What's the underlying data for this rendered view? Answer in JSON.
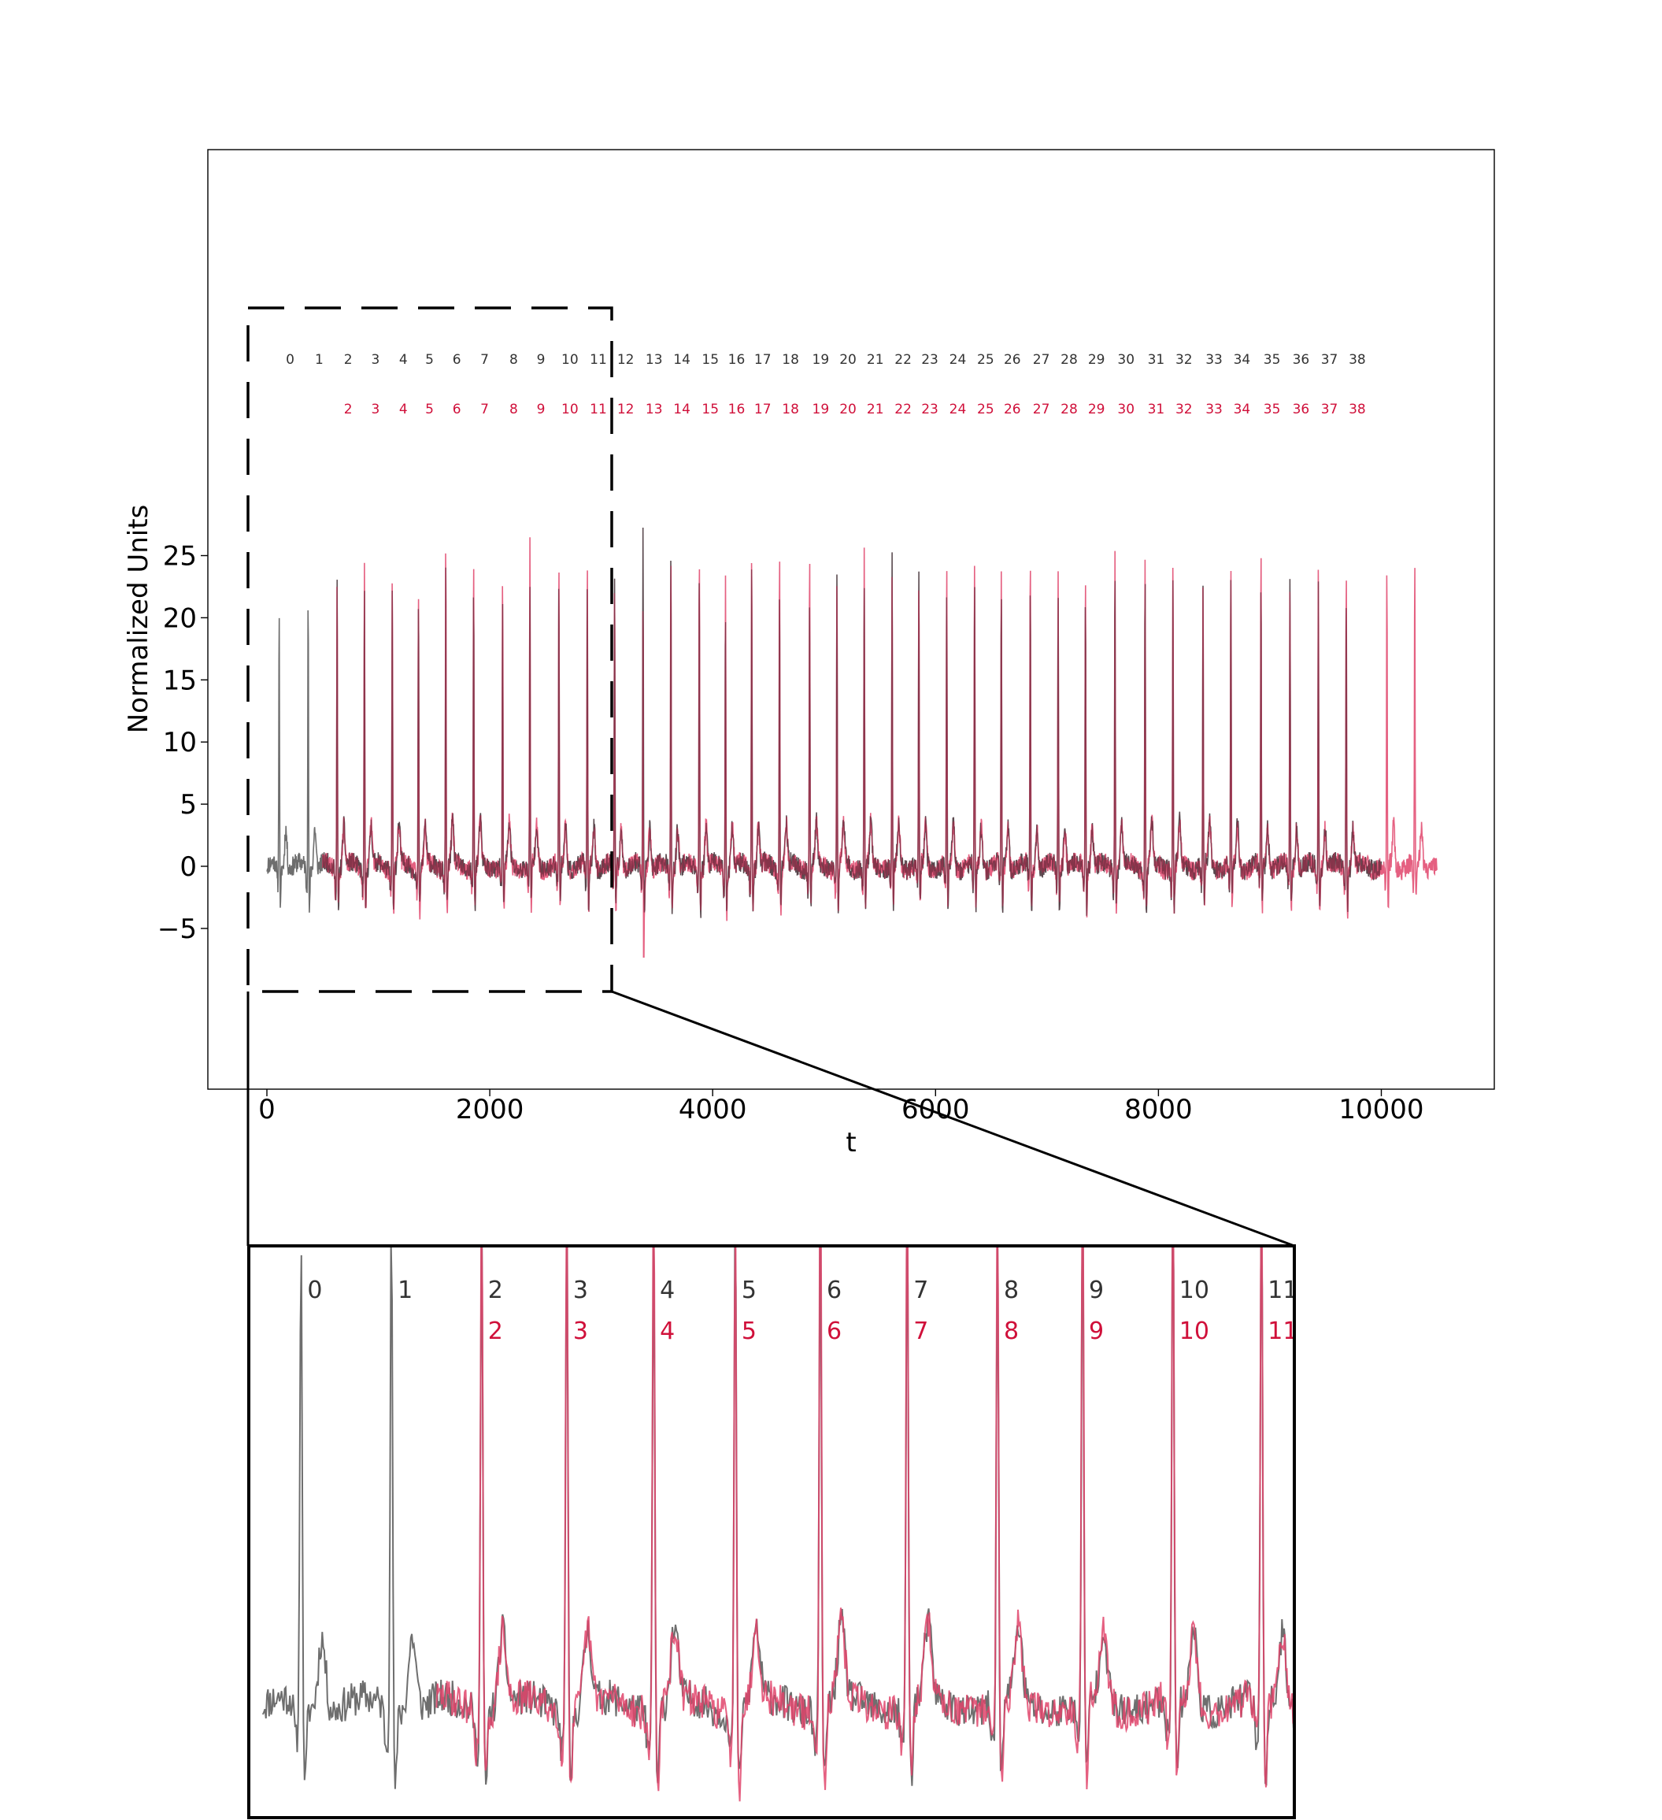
{
  "chart_data": [
    {
      "type": "line",
      "panel": "main",
      "title": "",
      "xlabel": "t",
      "ylabel": "Normalized Units",
      "xlim": [
        -540,
        11000
      ],
      "ylim": [
        -9.1,
        28.7
      ],
      "xticks": [
        0,
        2000,
        4000,
        6000,
        8000,
        10000
      ],
      "xtick_labels": [
        "0",
        "2000",
        "4000",
        "6000",
        "8000",
        "10000"
      ],
      "yticks": [
        -5,
        0,
        5,
        10,
        15,
        20,
        25
      ],
      "ytick_labels": [
        "−5",
        "0",
        "5",
        "10",
        "15",
        "20",
        "25"
      ],
      "grid": false,
      "legend": "none",
      "series": [
        {
          "color": "#6e6e6e",
          "x_range": [
            0,
            10000
          ],
          "beat_labels": [
            "0",
            "1",
            "2",
            "3",
            "4",
            "5",
            "6",
            "7",
            "8",
            "9",
            "10",
            "11",
            "12",
            "13",
            "14",
            "15",
            "16",
            "17",
            "18",
            "19",
            "20",
            "21",
            "22",
            "23",
            "24",
            "25",
            "26",
            "27",
            "28",
            "29",
            "30",
            "31",
            "32",
            "33",
            "34",
            "35",
            "36",
            "37",
            "38"
          ],
          "beat_t": [
            110,
            370,
            630,
            875,
            1125,
            1360,
            1605,
            1855,
            2115,
            2360,
            2620,
            2875,
            3120,
            3375,
            3625,
            3880,
            4115,
            4350,
            4600,
            4870,
            5115,
            5360,
            5610,
            5850,
            6100,
            6350,
            6590,
            6850,
            7100,
            7345,
            7610,
            7880,
            8130,
            8400,
            8650,
            8920,
            9180,
            9435,
            9685
          ],
          "beat_peaks": [
            21.7,
            22.8,
            23.5,
            23.3,
            22.9,
            22.8,
            23.6,
            23.1,
            21.0,
            23.2,
            24.1,
            23.3,
            23.3,
            26.8,
            26.1,
            24.2,
            22.0,
            24.1,
            23.3,
            23.1,
            24.1,
            24.1,
            24.4,
            23.2,
            23.0,
            24.1,
            23.2,
            23.2,
            23.1,
            22.1,
            25.6,
            24.9,
            23.8,
            23.1,
            24.1,
            24.0,
            23.1,
            22.8,
            23.2
          ]
        },
        {
          "color": "#e0446b",
          "x_range": [
            500,
            10500
          ],
          "beat_labels": [
            "2",
            "3",
            "4",
            "5",
            "6",
            "7",
            "8",
            "9",
            "10",
            "11",
            "12",
            "13",
            "14",
            "15",
            "16",
            "17",
            "18",
            "19",
            "20",
            "21",
            "22",
            "23",
            "24",
            "25",
            "26",
            "27",
            "28",
            "29",
            "30",
            "31",
            "32",
            "33",
            "34",
            "35",
            "36",
            "37",
            "38"
          ],
          "beat_t": [
            630,
            875,
            1125,
            1360,
            1605,
            1855,
            2115,
            2360,
            2620,
            2875,
            3120,
            3375,
            3625,
            3880,
            4115,
            4350,
            4600,
            4870,
            5115,
            5360,
            5610,
            5850,
            6100,
            6350,
            6590,
            6850,
            7100,
            7345,
            7610,
            7880,
            8130,
            8400,
            8650,
            8920,
            9180,
            9435,
            9685,
            10050,
            10300
          ],
          "beat_peaks": [
            23.5,
            25.0,
            24.9,
            23.2,
            27.1,
            25.6,
            23.7,
            25.9,
            24.9,
            24.8,
            23.5,
            21.9,
            25.6,
            26.0,
            24.6,
            26.0,
            25.8,
            25.8,
            24.2,
            25.6,
            24.3,
            23.2,
            24.6,
            24.6,
            24.1,
            25.4,
            24.2,
            23.8,
            25.5,
            25.2,
            25.4,
            23.4,
            24.8,
            25.6,
            23.6,
            25.2,
            24.5,
            24.0,
            25.4
          ],
          "negative_dip": {
            "t": 3375,
            "value": -7.3
          }
        }
      ],
      "zoom_box": {
        "t": [
          -180,
          3080
        ],
        "value": [
          -5,
          22.5
        ]
      }
    },
    {
      "type": "line",
      "panel": "zoom-inset",
      "title": "",
      "xlabel": "",
      "ylabel": "",
      "x_range": [
        0,
        3000
      ],
      "beat_labels_gray": [
        "0",
        "1",
        "2",
        "3",
        "4",
        "5",
        "6",
        "7",
        "8",
        "9",
        "10",
        "11"
      ],
      "beat_labels_red": [
        "2",
        "3",
        "4",
        "5",
        "6",
        "7",
        "8",
        "9",
        "10",
        "11"
      ],
      "series_colors": [
        "#6e6e6e",
        "#e0446b"
      ]
    }
  ],
  "colors": {
    "label_gray": "#333333",
    "label_red": "#d0103a",
    "axes": "#000000"
  }
}
